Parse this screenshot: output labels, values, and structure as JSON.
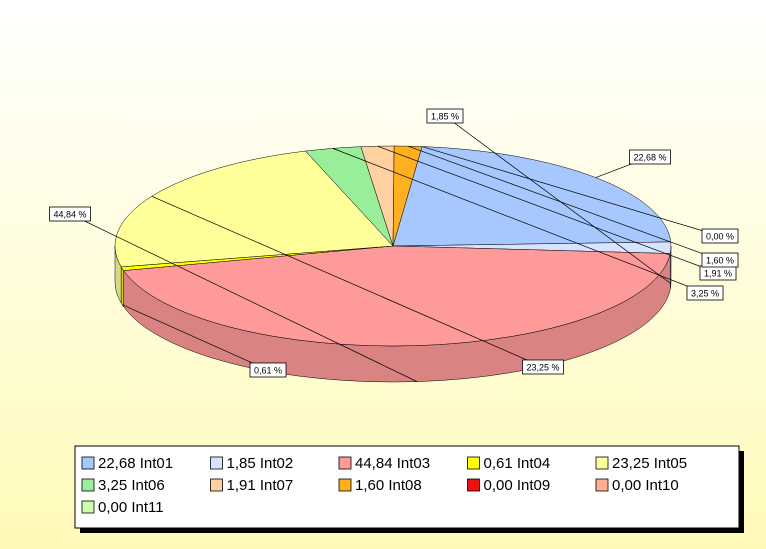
{
  "chart_data": {
    "type": "pie",
    "categories": [
      "Int01",
      "Int02",
      "Int03",
      "Int04",
      "Int05",
      "Int06",
      "Int07",
      "Int08",
      "Int09",
      "Int10",
      "Int11"
    ],
    "values": [
      22.68,
      1.85,
      44.84,
      0.61,
      23.25,
      3.25,
      1.91,
      1.6,
      0.0,
      0.0,
      0.0
    ],
    "value_labels": [
      "22,68 %",
      "1,85 %",
      "44,84 %",
      "0,61 %",
      "23,25 %",
      "3,25 %",
      "1,91 %",
      "1,60 %",
      "0,00 %",
      null,
      null
    ],
    "legend_labels": [
      "22,68",
      "1,85",
      "44,84",
      "0,61",
      "23,25",
      "3,25",
      "1,91",
      "1,60",
      "0,00",
      "0,00",
      "0,00"
    ],
    "colors": [
      "#a6c8ff",
      "#d8e4ff",
      "#ff9a9a",
      "#ffff00",
      "#ffff99",
      "#99ee99",
      "#ffd0a0",
      "#ffb020",
      "#ee1111",
      "#ffb090",
      "#ccffaa"
    ],
    "legend": "bottom"
  }
}
